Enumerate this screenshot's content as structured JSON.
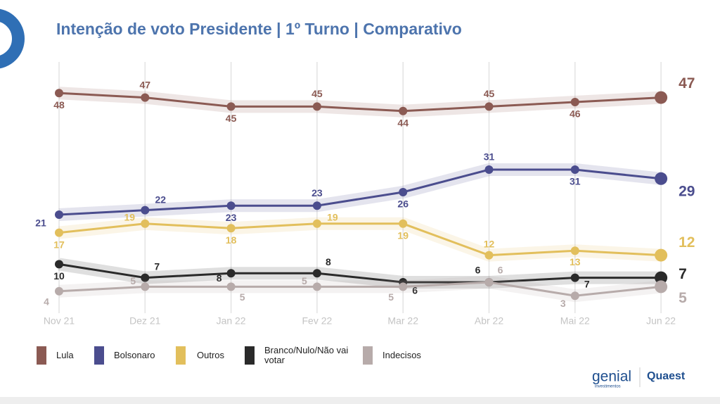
{
  "chart_data": {
    "type": "line",
    "title": "Intenção de voto Presidente | 1º Turno | Comparativo",
    "categories": [
      "Nov 21",
      "Dez 21",
      "Jan 22",
      "Fev 22",
      "Mar 22",
      "Abr 22",
      "Mai 22",
      "Jun 22"
    ],
    "series": [
      {
        "name": "Lula",
        "color": "#8b5a53",
        "values": [
          48,
          47,
          45,
          45,
          44,
          45,
          46,
          47
        ]
      },
      {
        "name": "Bolsonaro",
        "color": "#4b4d8e",
        "values": [
          21,
          22,
          23,
          23,
          26,
          31,
          31,
          29
        ]
      },
      {
        "name": "Outros",
        "color": "#e2bf5c",
        "values": [
          17,
          19,
          18,
          19,
          19,
          12,
          13,
          12
        ]
      },
      {
        "name": "Branco/Nulo/Não vai votar",
        "color": "#2a2a2a",
        "values": [
          10,
          7,
          8,
          8,
          6,
          6,
          7,
          7
        ]
      },
      {
        "name": "Indecisos",
        "color": "#b7abaa",
        "values": [
          4,
          5,
          5,
          5,
          5,
          6,
          3,
          5
        ]
      }
    ],
    "grid": true,
    "legend": "bottom",
    "logos": [
      "genial",
      "investimentos",
      "Quaest"
    ]
  }
}
